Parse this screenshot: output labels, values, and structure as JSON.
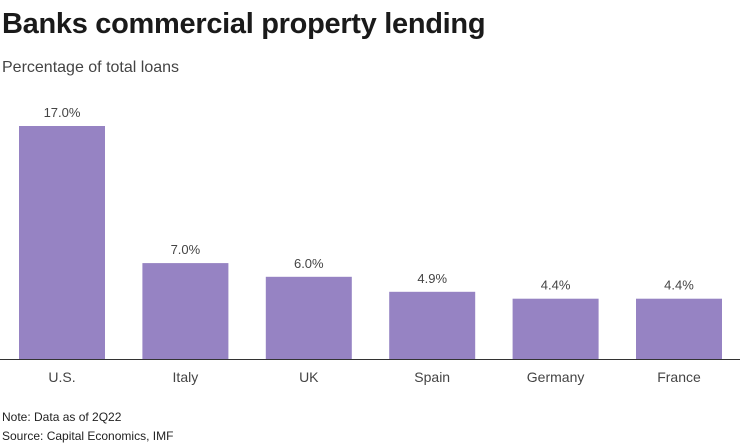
{
  "chart_data": {
    "type": "bar",
    "title": "Banks commercial property lending",
    "subtitle": "Percentage of total loans",
    "categories": [
      "U.S.",
      "Italy",
      "UK",
      "Spain",
      "Germany",
      "France"
    ],
    "values": [
      17.0,
      7.0,
      6.0,
      4.9,
      4.4,
      4.4
    ],
    "value_labels": [
      "17.0%",
      "7.0%",
      "6.0%",
      "4.9%",
      "4.4%",
      "4.4%"
    ],
    "xlabel": "",
    "ylabel": "",
    "ylim": [
      0,
      17.0
    ],
    "grid": false,
    "bar_color": "#9683c3",
    "note": "Note: Data as of 2Q22",
    "source": "Source: Capital Economics, IMF"
  }
}
